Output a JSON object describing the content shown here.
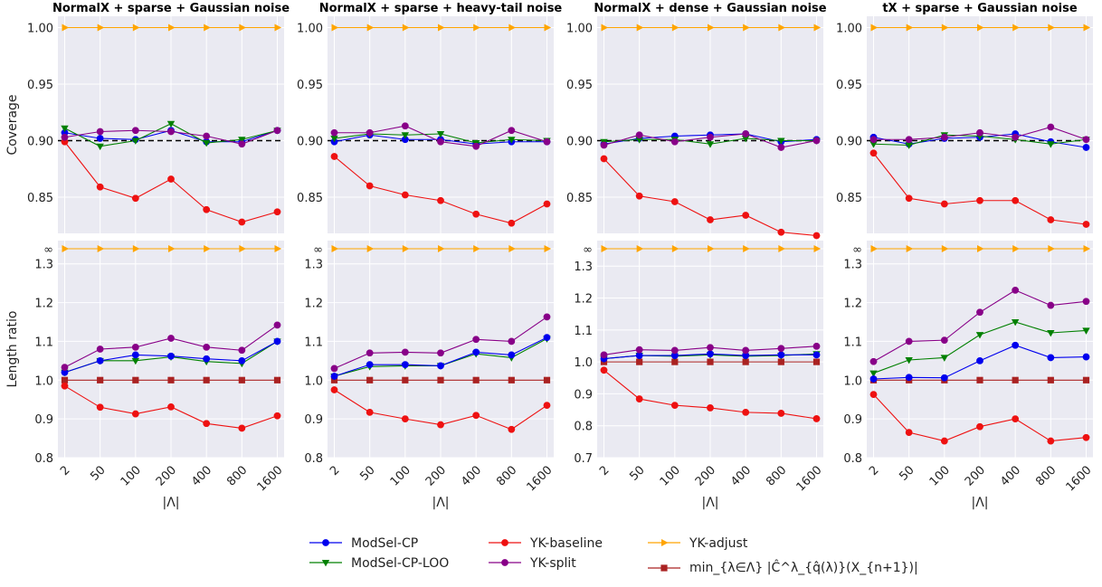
{
  "chart_data": {
    "type": "line",
    "x_categories": [
      "2",
      "50",
      "100",
      "200",
      "400",
      "800",
      "1600"
    ],
    "xlabel": "|Λ|",
    "panel_titles": [
      "NormalX + sparse + Gaussian noise",
      "NormalX + sparse + heavy-tail noise",
      "NormalX + dense + Gaussian noise",
      "tX + sparse + Gaussian noise"
    ],
    "coverage": {
      "ylabel": "Coverage",
      "ylim": [
        0.818,
        1.01
      ],
      "yticks": [
        0.85,
        0.9,
        0.95,
        1.0
      ],
      "ytick_labels": [
        "0.85",
        "0.90",
        "0.95",
        "1.00"
      ],
      "target_line": 0.9,
      "panels": [
        {
          "ModSel-CP": [
            0.907,
            0.902,
            0.901,
            0.909,
            0.899,
            0.899,
            0.909
          ],
          "ModSel-CP-LOO": [
            0.911,
            0.895,
            0.9,
            0.915,
            0.898,
            0.901,
            0.909
          ],
          "YK-baseline": [
            0.899,
            0.859,
            0.849,
            0.866,
            0.839,
            0.828,
            0.837
          ],
          "YK-split": [
            0.903,
            0.908,
            0.909,
            0.908,
            0.904,
            0.897,
            0.909
          ],
          "YK-adjust": [
            1.0,
            1.0,
            1.0,
            1.0,
            1.0,
            1.0,
            1.0
          ]
        },
        {
          "ModSel-CP": [
            0.899,
            0.905,
            0.901,
            0.901,
            0.897,
            0.899,
            0.899
          ],
          "ModSel-CP-LOO": [
            0.902,
            0.906,
            0.905,
            0.906,
            0.898,
            0.901,
            0.9
          ],
          "YK-baseline": [
            0.886,
            0.86,
            0.852,
            0.847,
            0.835,
            0.827,
            0.844
          ],
          "YK-split": [
            0.907,
            0.907,
            0.913,
            0.899,
            0.895,
            0.909,
            0.899
          ],
          "YK-adjust": [
            1.0,
            1.0,
            1.0,
            1.0,
            1.0,
            1.0,
            1.0
          ]
        },
        {
          "ModSel-CP": [
            0.897,
            0.902,
            0.904,
            0.905,
            0.906,
            0.899,
            0.901
          ],
          "ModSel-CP-LOO": [
            0.899,
            0.901,
            0.901,
            0.897,
            0.902,
            0.9,
            0.9
          ],
          "YK-baseline": [
            0.884,
            0.851,
            0.846,
            0.83,
            0.834,
            0.819,
            0.816
          ],
          "YK-split": [
            0.896,
            0.905,
            0.899,
            0.903,
            0.906,
            0.894,
            0.9
          ],
          "YK-adjust": [
            1.0,
            1.0,
            1.0,
            1.0,
            1.0,
            1.0,
            1.0
          ]
        },
        {
          "ModSel-CP": [
            0.903,
            0.897,
            0.902,
            0.903,
            0.906,
            0.899,
            0.894
          ],
          "ModSel-CP-LOO": [
            0.897,
            0.896,
            0.905,
            0.904,
            0.901,
            0.897,
            0.901
          ],
          "YK-baseline": [
            0.889,
            0.849,
            0.844,
            0.847,
            0.847,
            0.83,
            0.826
          ],
          "YK-split": [
            0.901,
            0.901,
            0.903,
            0.907,
            0.903,
            0.912,
            0.901
          ],
          "YK-adjust": [
            1.0,
            1.0,
            1.0,
            1.0,
            1.0,
            1.0,
            1.0
          ]
        }
      ]
    },
    "length_ratio": {
      "ylabel": "Length ratio",
      "infinity_label": "∞",
      "panels": [
        {
          "ylim": [
            0.8,
            1.36
          ],
          "yticks": [
            0.8,
            0.9,
            1.0,
            1.1,
            1.2,
            1.3
          ],
          "ytick_labels": [
            "0.8",
            "0.9",
            "1.0",
            "1.1",
            "1.2",
            "1.3"
          ],
          "ModSel-CP": [
            1.02,
            1.05,
            1.065,
            1.062,
            1.055,
            1.05,
            1.1
          ],
          "ModSel-CP-LOO": [
            1.02,
            1.05,
            1.05,
            1.06,
            1.048,
            1.043,
            1.1
          ],
          "YK-baseline": [
            0.985,
            0.93,
            0.913,
            0.931,
            0.888,
            0.876,
            0.908
          ],
          "YK-split": [
            1.033,
            1.08,
            1.085,
            1.108,
            1.085,
            1.077,
            1.142
          ],
          "oracle": [
            1.0,
            1.0,
            1.0,
            1.0,
            1.0,
            1.0,
            1.0
          ]
        },
        {
          "ylim": [
            0.8,
            1.36
          ],
          "yticks": [
            0.8,
            0.9,
            1.0,
            1.1,
            1.2,
            1.3
          ],
          "ytick_labels": [
            "0.8",
            "0.9",
            "1.0",
            "1.1",
            "1.2",
            "1.3"
          ],
          "ModSel-CP": [
            1.01,
            1.04,
            1.04,
            1.037,
            1.072,
            1.065,
            1.11
          ],
          "ModSel-CP-LOO": [
            1.01,
            1.035,
            1.037,
            1.037,
            1.068,
            1.058,
            1.107
          ],
          "YK-baseline": [
            0.975,
            0.917,
            0.9,
            0.885,
            0.909,
            0.873,
            0.935
          ],
          "YK-split": [
            1.03,
            1.07,
            1.072,
            1.07,
            1.105,
            1.1,
            1.163
          ],
          "oracle": [
            1.0,
            1.0,
            1.0,
            1.0,
            1.0,
            1.0,
            1.0
          ]
        },
        {
          "ylim": [
            0.7,
            1.38
          ],
          "yticks": [
            0.7,
            0.8,
            0.9,
            1.0,
            1.1,
            1.2,
            1.3
          ],
          "ytick_labels": [
            "0.7",
            "0.8",
            "0.9",
            "1.0",
            "1.1",
            "1.2",
            "1.3"
          ],
          "ModSel-CP": [
            1.01,
            1.02,
            1.02,
            1.025,
            1.02,
            1.022,
            1.022
          ],
          "ModSel-CP-LOO": [
            1.01,
            1.02,
            1.018,
            1.022,
            1.018,
            1.02,
            1.025
          ],
          "YK-baseline": [
            0.974,
            0.884,
            0.864,
            0.856,
            0.842,
            0.839,
            0.822
          ],
          "YK-split": [
            1.022,
            1.038,
            1.036,
            1.045,
            1.036,
            1.042,
            1.049
          ],
          "oracle": [
            1.0,
            1.0,
            1.0,
            1.0,
            1.0,
            1.0,
            1.0
          ]
        },
        {
          "ylim": [
            0.8,
            1.36
          ],
          "yticks": [
            0.8,
            0.9,
            1.0,
            1.1,
            1.2,
            1.3
          ],
          "ytick_labels": [
            "0.8",
            "0.9",
            "1.0",
            "1.1",
            "1.2",
            "1.3"
          ],
          "ModSel-CP": [
            1.003,
            1.007,
            1.006,
            1.05,
            1.09,
            1.058,
            1.06
          ],
          "ModSel-CP-LOO": [
            1.018,
            1.052,
            1.058,
            1.117,
            1.15,
            1.122,
            1.128
          ],
          "YK-baseline": [
            0.963,
            0.865,
            0.843,
            0.88,
            0.9,
            0.843,
            0.852
          ],
          "YK-split": [
            1.048,
            1.1,
            1.103,
            1.175,
            1.232,
            1.193,
            1.203
          ],
          "oracle": [
            1.0,
            1.0,
            1.0,
            1.0,
            1.0,
            1.0,
            1.0
          ]
        }
      ]
    },
    "legend": [
      {
        "key": "ModSel-CP",
        "label": "ModSel-CP",
        "color": "#0000ee",
        "marker": "circle"
      },
      {
        "key": "ModSel-CP-LOO",
        "label": "ModSel-CP-LOO",
        "color": "#008000",
        "marker": "triangle-down"
      },
      {
        "key": "YK-baseline",
        "label": "YK-baseline",
        "color": "#ee1111",
        "marker": "circle"
      },
      {
        "key": "YK-split",
        "label": "YK-split",
        "color": "#880088",
        "marker": "circle"
      },
      {
        "key": "YK-adjust",
        "label": "YK-adjust",
        "color": "#ffa500",
        "marker": "triangle-right"
      },
      {
        "key": "oracle",
        "label": "min_{λ∈Λ} |Ĉ^λ_{q̂(λ)}(X_{n+1})|",
        "color": "#aa2222",
        "marker": "square"
      }
    ],
    "colors": {
      "panel_background": "#eaeaf2",
      "grid": "#ffffff",
      "target_line": "#000000"
    }
  }
}
